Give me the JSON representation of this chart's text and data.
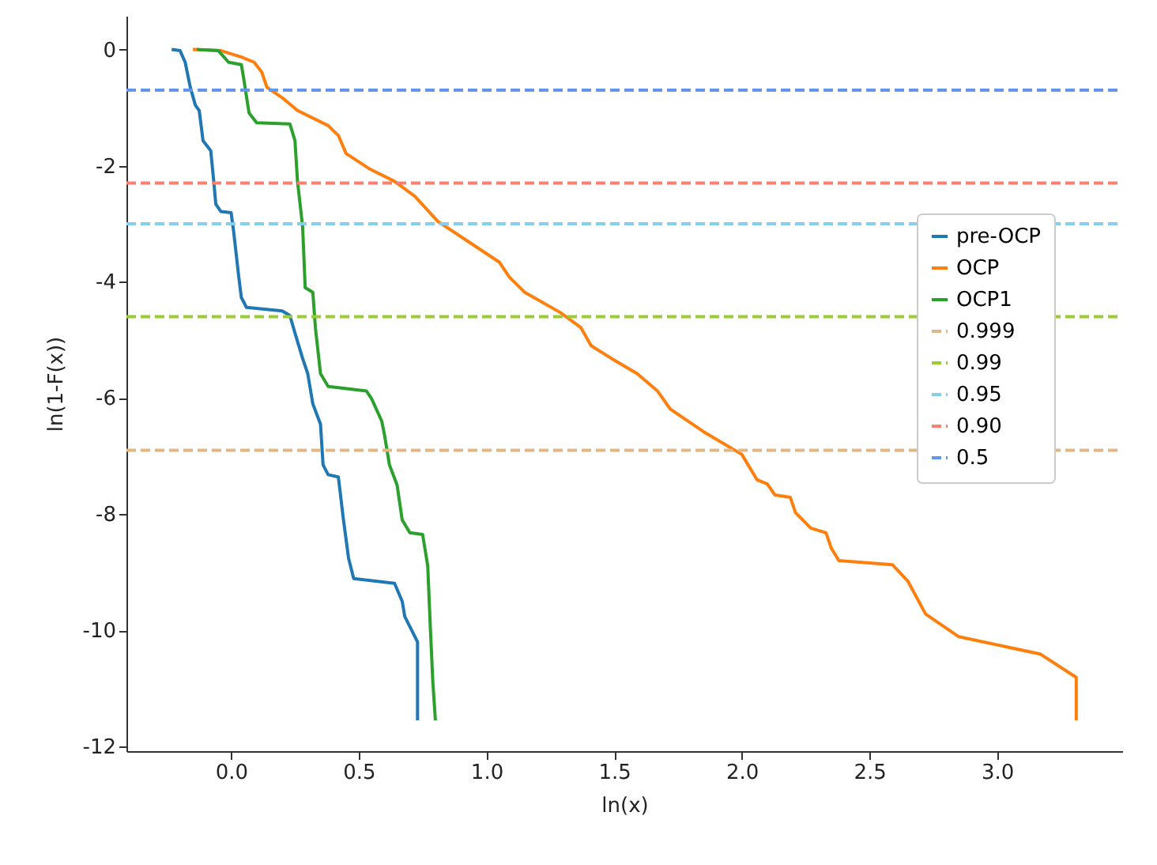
{
  "chart_data": {
    "type": "line",
    "xlabel": "ln(x)",
    "ylabel": "ln(1-F(x))",
    "xlim": [
      -0.41,
      3.49
    ],
    "ylim": [
      -12.08,
      0.58
    ],
    "xticks": [
      {
        "value": 0,
        "label": "0.0"
      },
      {
        "value": 0.5,
        "label": "0.5"
      },
      {
        "value": 1,
        "label": "1.0"
      },
      {
        "value": 1.5,
        "label": "1.5"
      },
      {
        "value": 2,
        "label": "2.0"
      },
      {
        "value": 2.5,
        "label": "2.5"
      },
      {
        "value": 3,
        "label": "3.0"
      }
    ],
    "yticks": [
      0,
      -2,
      -4,
      -6,
      -8,
      -10,
      -12
    ],
    "legend": "right",
    "grid": false,
    "marker": "none",
    "series": [
      {
        "name": "pre-OCP",
        "color": "#1f77b4",
        "line_style": "solid",
        "x": [
          -0.233,
          -0.2,
          -0.18,
          -0.16,
          -0.14,
          -0.125,
          -0.11,
          -0.08,
          -0.07,
          -0.06,
          -0.04,
          0.0,
          0.01,
          0.03,
          0.04,
          0.06,
          0.2,
          0.23,
          0.25,
          0.28,
          0.3,
          0.32,
          0.35,
          0.36,
          0.38,
          0.42,
          0.44,
          0.46,
          0.48,
          0.64,
          0.67,
          0.68,
          0.72,
          0.73,
          0.73
        ],
        "values": [
          0,
          -0.02,
          -0.22,
          -0.65,
          -0.96,
          -1.05,
          -1.57,
          -1.74,
          -2.18,
          -2.66,
          -2.79,
          -2.81,
          -3.14,
          -3.92,
          -4.27,
          -4.44,
          -4.5,
          -4.58,
          -4.88,
          -5.32,
          -5.58,
          -6.1,
          -6.45,
          -7.15,
          -7.32,
          -7.36,
          -8.1,
          -8.76,
          -9.11,
          -9.19,
          -9.5,
          -9.76,
          -10.11,
          -10.2,
          -11.55
        ]
      },
      {
        "name": "OCP",
        "color": "#ff7f0e",
        "line_style": "solid",
        "x": [
          -0.15,
          -0.04,
          0.04,
          0.09,
          0.12,
          0.14,
          0.2,
          0.26,
          0.38,
          0.42,
          0.45,
          0.54,
          0.64,
          0.72,
          0.81,
          0.93,
          1.05,
          1.09,
          1.15,
          1.29,
          1.37,
          1.41,
          1.49,
          1.59,
          1.67,
          1.72,
          1.85,
          2.0,
          2.06,
          2.1,
          2.13,
          2.19,
          2.21,
          2.27,
          2.33,
          2.35,
          2.38,
          2.59,
          2.65,
          2.72,
          2.85,
          3.17,
          3.31,
          3.31
        ],
        "values": [
          0,
          -0.02,
          -0.13,
          -0.22,
          -0.39,
          -0.65,
          -0.83,
          -1.05,
          -1.31,
          -1.48,
          -1.79,
          -2.05,
          -2.27,
          -2.53,
          -2.96,
          -3.31,
          -3.66,
          -3.92,
          -4.18,
          -4.53,
          -4.79,
          -5.1,
          -5.32,
          -5.58,
          -5.88,
          -6.19,
          -6.58,
          -6.97,
          -7.41,
          -7.48,
          -7.67,
          -7.71,
          -7.97,
          -8.24,
          -8.32,
          -8.58,
          -8.8,
          -8.87,
          -9.15,
          -9.72,
          -10.11,
          -10.41,
          -10.81,
          -11.55
        ]
      },
      {
        "name": "OCP1",
        "color": "#2ca02c",
        "line_style": "solid",
        "x": [
          -0.134,
          -0.05,
          -0.01,
          0.04,
          0.05,
          0.07,
          0.1,
          0.23,
          0.25,
          0.26,
          0.28,
          0.29,
          0.32,
          0.33,
          0.35,
          0.38,
          0.53,
          0.55,
          0.59,
          0.6,
          0.62,
          0.65,
          0.67,
          0.7,
          0.75,
          0.77,
          0.78,
          0.79,
          0.8
        ],
        "values": [
          0,
          -0.02,
          -0.22,
          -0.26,
          -0.52,
          -1.09,
          -1.26,
          -1.28,
          -1.57,
          -2.27,
          -3.05,
          -4.1,
          -4.18,
          -4.79,
          -5.58,
          -5.8,
          -5.88,
          -6.01,
          -6.4,
          -6.62,
          -7.15,
          -7.5,
          -8.1,
          -8.32,
          -8.35,
          -8.89,
          -9.93,
          -10.89,
          -11.55
        ]
      },
      {
        "name": "0.999",
        "color": "#deb887",
        "line_style": "dashed",
        "x": [
          -0.41,
          3.49
        ],
        "values": [
          -6.9,
          -6.9
        ]
      },
      {
        "name": "0.99",
        "color": "#9acd32",
        "line_style": "dashed",
        "x": [
          -0.41,
          3.49
        ],
        "values": [
          -4.6,
          -4.6
        ]
      },
      {
        "name": "0.95",
        "color": "#87ceeb",
        "line_style": "dashed",
        "x": [
          -0.41,
          3.49
        ],
        "values": [
          -3.0,
          -3.0
        ]
      },
      {
        "name": "0.90",
        "color": "#fa8072",
        "line_style": "dashed",
        "x": [
          -0.41,
          3.49
        ],
        "values": [
          -2.3,
          -2.3
        ]
      },
      {
        "name": "0.5",
        "color": "#6495ed",
        "line_style": "dashed",
        "x": [
          -0.41,
          3.49
        ],
        "values": [
          -0.7,
          -0.7
        ]
      }
    ]
  }
}
